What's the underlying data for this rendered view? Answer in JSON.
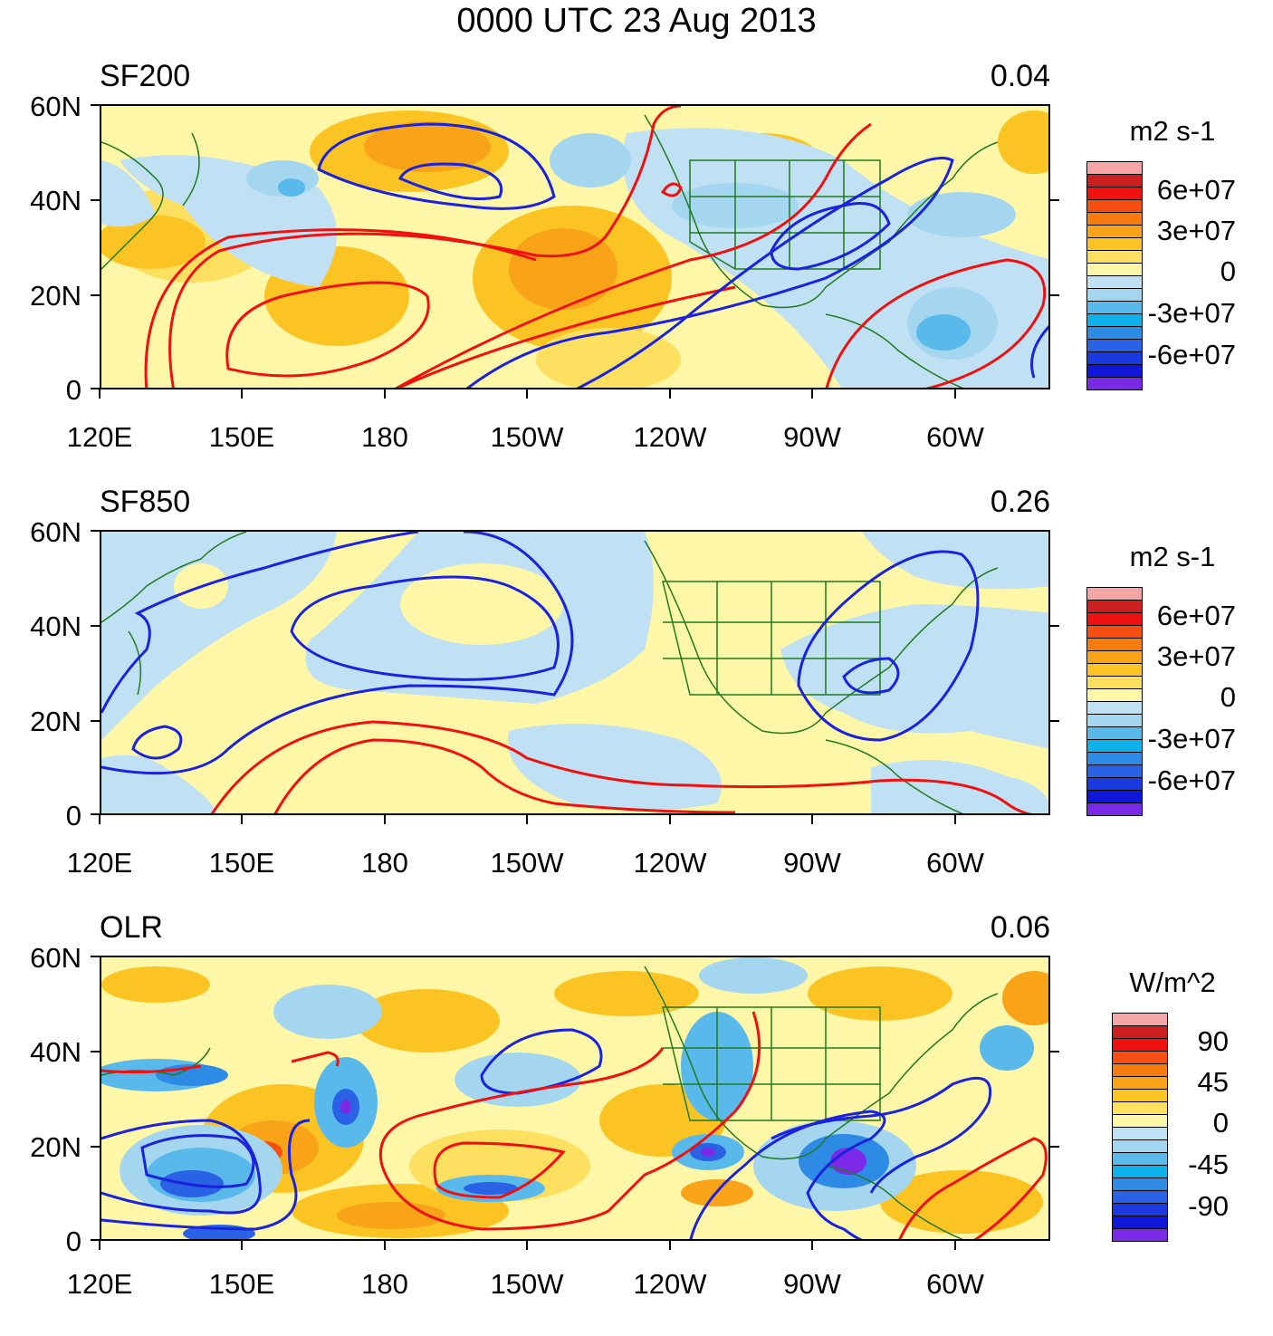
{
  "title": "0000 UTC 23 Aug 2013",
  "axes": {
    "latitudes": [
      "60N",
      "40N",
      "20N",
      "0"
    ],
    "longitudes": [
      "120E",
      "150E",
      "180",
      "150W",
      "120W",
      "90W",
      "60W"
    ]
  },
  "panels": [
    {
      "label": "SF200",
      "value": "0.04",
      "legend": {
        "unit": "m2 s-1",
        "labels": [
          "6e+07",
          "3e+07",
          "0",
          "-3e+07",
          "-6e+07"
        ],
        "colors": [
          "#f4a6a6",
          "#cc1f1f",
          "#ef1010",
          "#f64f11",
          "#f77c10",
          "#f9a318",
          "#fbc423",
          "#fde05f",
          "#fff7a8",
          "#bfe1f3",
          "#a5d6f0",
          "#5ab9eb",
          "#0eb1ea",
          "#2d8be6",
          "#2962e4",
          "#1a3ae0",
          "#0e16d8",
          "#7a2ae6"
        ]
      }
    },
    {
      "label": "SF850",
      "value": "0.26",
      "legend": {
        "unit": "m2 s-1",
        "labels": [
          "6e+07",
          "3e+07",
          "0",
          "-3e+07",
          "-6e+07"
        ],
        "colors": [
          "#f4a6a6",
          "#cc1f1f",
          "#ef1010",
          "#f64f11",
          "#f77c10",
          "#f9a318",
          "#fbc423",
          "#fde05f",
          "#fff7a8",
          "#bfe1f3",
          "#a5d6f0",
          "#5ab9eb",
          "#0eb1ea",
          "#2d8be6",
          "#2962e4",
          "#1a3ae0",
          "#0e16d8",
          "#7a2ae6"
        ]
      }
    },
    {
      "label": "OLR",
      "value": "0.06",
      "legend": {
        "unit": "W/m^2",
        "labels": [
          "90",
          "45",
          "0",
          "-45",
          "-90"
        ],
        "colors": [
          "#f4a6a6",
          "#cc1f1f",
          "#ef1010",
          "#f64f11",
          "#f77c10",
          "#f9a318",
          "#fbc423",
          "#fde05f",
          "#fff7a8",
          "#bfe1f3",
          "#a5d6f0",
          "#5ab9eb",
          "#0eb1ea",
          "#2d8be6",
          "#2962e4",
          "#1a3ae0",
          "#0e16d8",
          "#7a2ae6"
        ]
      }
    }
  ]
}
